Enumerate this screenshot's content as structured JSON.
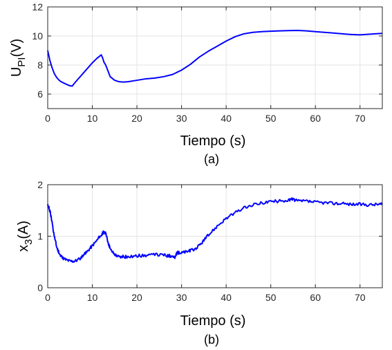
{
  "chart_data": [
    {
      "type": "line",
      "caption": "(a)",
      "xlabel": "Tiempo (s)",
      "ylabel_main": "U",
      "ylabel_sub": "PI",
      "ylabel_tail": "(V)",
      "xlim": [
        0,
        75
      ],
      "ylim": [
        5,
        12
      ],
      "xticks": [
        0,
        10,
        20,
        30,
        40,
        50,
        60,
        70
      ],
      "yticks": [
        6,
        8,
        10,
        12
      ],
      "grid": true,
      "line_color": "#0000ff",
      "noise": 0,
      "series": [
        {
          "x": [
            0,
            0.5,
            1,
            1.5,
            2,
            2.5,
            3,
            4,
            5,
            5.5,
            6,
            7,
            8,
            9,
            10,
            11,
            12,
            12.3,
            12.6,
            13,
            13.5,
            14,
            15,
            16,
            17,
            18,
            20,
            22,
            24,
            26,
            28,
            30,
            32,
            34,
            36,
            38,
            40,
            42,
            44,
            46,
            48,
            50,
            52,
            54,
            56,
            58,
            60,
            62,
            64,
            66,
            68,
            70,
            72,
            74,
            75
          ],
          "y": [
            9.0,
            8.3,
            7.8,
            7.4,
            7.15,
            6.97,
            6.85,
            6.7,
            6.57,
            6.55,
            6.75,
            7.1,
            7.45,
            7.8,
            8.15,
            8.45,
            8.7,
            8.5,
            8.2,
            8.0,
            7.6,
            7.2,
            6.95,
            6.85,
            6.83,
            6.85,
            6.95,
            7.05,
            7.1,
            7.2,
            7.35,
            7.65,
            8.05,
            8.55,
            8.95,
            9.3,
            9.65,
            9.95,
            10.15,
            10.25,
            10.3,
            10.33,
            10.35,
            10.37,
            10.38,
            10.35,
            10.3,
            10.25,
            10.2,
            10.15,
            10.1,
            10.08,
            10.12,
            10.16,
            10.18
          ]
        }
      ]
    },
    {
      "type": "line",
      "caption": "(b)",
      "xlabel": "Tiempo (s)",
      "ylabel_main": "x",
      "ylabel_sub": "3",
      "ylabel_tail": "(A)",
      "xlim": [
        0,
        75
      ],
      "ylim": [
        0,
        2
      ],
      "xticks": [
        0,
        10,
        20,
        30,
        40,
        50,
        60,
        70
      ],
      "yticks": [
        0,
        1,
        2
      ],
      "grid": true,
      "line_color": "#0000ff",
      "noise": 0.03,
      "series": [
        {
          "x": [
            0,
            0.3,
            0.6,
            1,
            1.5,
            2,
            2.5,
            3,
            4,
            5,
            6,
            7,
            8,
            9,
            10,
            11,
            12,
            12.5,
            13,
            13.5,
            14,
            15,
            16,
            17,
            18,
            20,
            22,
            24,
            26,
            27,
            28,
            28.5,
            29,
            30,
            31,
            32,
            33,
            34,
            35,
            36,
            38,
            40,
            42,
            44,
            46,
            48,
            50,
            52,
            54,
            55,
            56,
            58,
            60,
            62,
            64,
            66,
            68,
            70,
            72,
            74,
            75
          ],
          "y": [
            1.6,
            1.55,
            1.45,
            1.25,
            1.0,
            0.8,
            0.68,
            0.6,
            0.55,
            0.52,
            0.52,
            0.55,
            0.62,
            0.72,
            0.82,
            0.92,
            1.02,
            1.08,
            1.05,
            0.9,
            0.75,
            0.65,
            0.6,
            0.6,
            0.6,
            0.62,
            0.63,
            0.64,
            0.64,
            0.62,
            0.62,
            0.58,
            0.68,
            0.68,
            0.7,
            0.72,
            0.75,
            0.82,
            0.92,
            1.02,
            1.2,
            1.35,
            1.45,
            1.55,
            1.6,
            1.65,
            1.67,
            1.68,
            1.7,
            1.72,
            1.68,
            1.68,
            1.66,
            1.65,
            1.64,
            1.63,
            1.62,
            1.62,
            1.61,
            1.62,
            1.62
          ]
        }
      ]
    }
  ]
}
